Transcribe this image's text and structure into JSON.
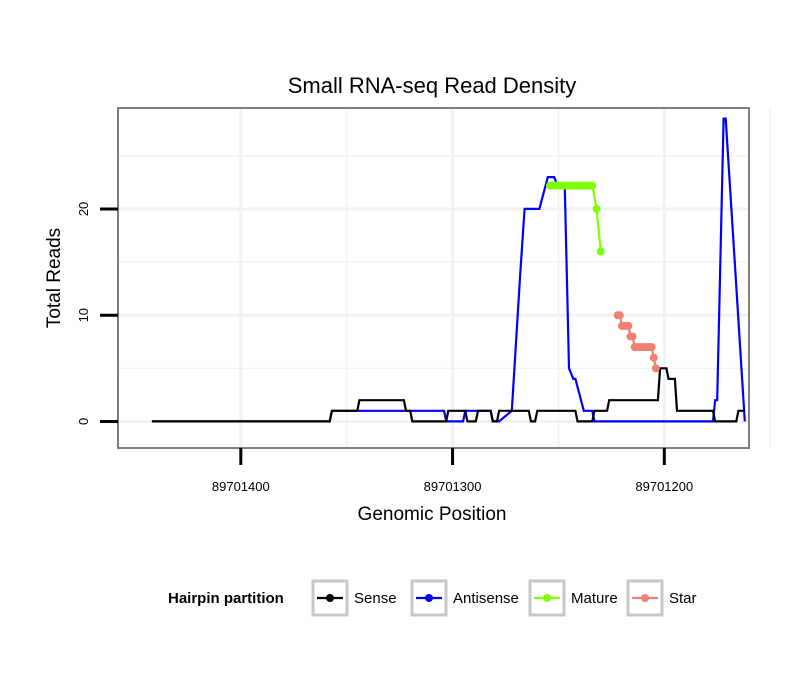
{
  "chart_data": {
    "type": "line",
    "title": "Small RNA-seq Read Density",
    "xlabel": "Genomic Position",
    "ylabel": "Total Reads",
    "x_reversed": true,
    "xlim": [
      89701160,
      89701458
    ],
    "ylim": [
      -2.5,
      29.5
    ],
    "x_ticks": [
      89701400,
      89701300,
      89701200
    ],
    "x_tick_labels": [
      "89701400",
      "89701300",
      "89701200"
    ],
    "y_ticks": [
      0,
      10,
      20
    ],
    "y_tick_labels": [
      "0",
      "10",
      "20"
    ],
    "grid": true,
    "legend": {
      "title": "Hairpin partition",
      "position": "bottom",
      "entries": [
        "Sense",
        "Antisense",
        "Mature",
        "Star"
      ]
    },
    "series": [
      {
        "name": "Sense",
        "color": "#000000",
        "marker": false,
        "x": [
          89701442,
          89701358,
          89701357,
          89701345,
          89701344,
          89701340,
          89701339,
          89701323,
          89701322,
          89701320,
          89701319,
          89701303,
          89701302,
          89701299,
          89701298,
          89701294,
          89701293,
          89701289,
          89701288,
          89701286,
          89701285,
          89701282,
          89701281,
          89701279,
          89701278,
          89701273,
          89701272,
          89701264,
          89701263,
          89701261,
          89701260,
          89701248,
          89701247,
          89701242,
          89701241,
          89701239,
          89701238,
          89701234,
          89701233,
          89701227,
          89701226,
          89701221,
          89701220,
          89701203,
          89701202,
          89701199,
          89701198,
          89701195,
          89701194,
          89701177,
          89701176,
          89701166,
          89701165,
          89701162
        ],
        "y": [
          0,
          0,
          1,
          1,
          2,
          2,
          2,
          2,
          1,
          1,
          0,
          0,
          1,
          1,
          1,
          1,
          0,
          0,
          1,
          1,
          1,
          1,
          0,
          0,
          1,
          1,
          1,
          1,
          0,
          0,
          1,
          1,
          1,
          1,
          0,
          0,
          0,
          0,
          1,
          1,
          2,
          2,
          2,
          2,
          5,
          5,
          4,
          4,
          1,
          1,
          0,
          0,
          1,
          1
        ]
      },
      {
        "name": "Antisense",
        "color": "#0000ff",
        "marker": false,
        "x": [
          89701442,
          89701358,
          89701357,
          89701339,
          89701338,
          89701304,
          89701303,
          89701295,
          89701294,
          89701282,
          89701281,
          89701278,
          89701272,
          89701268,
          89701266,
          89701259,
          89701255,
          89701252,
          89701250,
          89701247,
          89701245,
          89701243,
          89701242,
          89701238,
          89701237,
          89701236,
          89701235,
          89701234,
          89701233,
          89701226,
          89701221,
          89701220,
          89701206,
          89701205,
          89701202,
          89701199,
          89701193,
          89701178,
          89701177,
          89701176,
          89701175,
          89701172,
          89701171,
          89701162
        ],
        "y": [
          0,
          0,
          1,
          1,
          1,
          1,
          0,
          0,
          1,
          1,
          0,
          0,
          1,
          14,
          20,
          20,
          23,
          23,
          22,
          22,
          5,
          4,
          4,
          1,
          1,
          1,
          1,
          1,
          0,
          0,
          0,
          0,
          0,
          0,
          0,
          0,
          0,
          0,
          0,
          2,
          2,
          28.5,
          28.5,
          0
        ]
      },
      {
        "name": "Mature",
        "color": "#7fff00",
        "marker": true,
        "x": [
          89701254,
          89701253,
          89701252,
          89701251,
          89701250,
          89701249,
          89701248,
          89701247,
          89701246,
          89701245,
          89701244,
          89701243,
          89701242,
          89701241,
          89701240,
          89701239,
          89701238,
          89701237,
          89701236,
          89701235,
          89701234,
          89701232,
          89701230
        ],
        "y": [
          22.2,
          22.2,
          22.2,
          22.2,
          22.2,
          22.2,
          22.2,
          22.2,
          22.2,
          22.2,
          22.2,
          22.2,
          22.2,
          22.2,
          22.2,
          22.2,
          22.2,
          22.2,
          22.2,
          22.2,
          22.2,
          20,
          16
        ]
      },
      {
        "name": "Star",
        "color": "#f08070",
        "marker": true,
        "x": [
          89701222,
          89701221,
          89701220,
          89701219,
          89701218,
          89701217,
          89701216,
          89701215,
          89701214,
          89701213,
          89701212,
          89701211,
          89701210,
          89701209,
          89701208,
          89701207,
          89701206,
          89701205,
          89701204
        ],
        "y": [
          10,
          10,
          9,
          9,
          9,
          9,
          8,
          8,
          7,
          7,
          7,
          7,
          7,
          7,
          7,
          7,
          7,
          6,
          5
        ]
      }
    ]
  }
}
